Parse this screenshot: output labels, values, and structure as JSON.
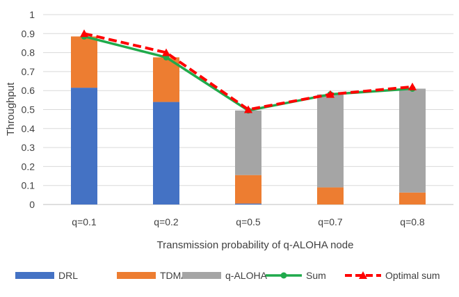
{
  "chart_data": {
    "type": "bar",
    "stacked": true,
    "title": "",
    "xlabel": "Transmission probability of q-ALOHA node",
    "ylabel": "Throughput",
    "ylim": [
      0,
      1
    ],
    "yticks": [
      "0",
      "0.1",
      "0.2",
      "0.3",
      "0.4",
      "0.5",
      "0.6",
      "0.7",
      "0.8",
      "0.9",
      "1"
    ],
    "grid": true,
    "legend_position": "bottom",
    "categories": [
      "q=0.1",
      "q=0.2",
      "q=0.5",
      "q=0.7",
      "q=0.8"
    ],
    "series": [
      {
        "name": "DRL",
        "kind": "bar",
        "color": "#4472C4",
        "values": [
          0.615,
          0.54,
          0.005,
          0.0,
          0.0
        ]
      },
      {
        "name": "TDMA",
        "kind": "bar",
        "color": "#ED7D31",
        "values": [
          0.27,
          0.235,
          0.15,
          0.09,
          0.063
        ]
      },
      {
        "name": "q-ALOHA",
        "kind": "bar",
        "color": "#A5A5A5",
        "values": [
          0.0,
          0.0,
          0.34,
          0.49,
          0.547
        ]
      },
      {
        "name": "Sum",
        "kind": "line",
        "color": "#1FAA4B",
        "marker": "circle",
        "values": [
          0.885,
          0.775,
          0.495,
          0.58,
          0.61
        ]
      },
      {
        "name": "Optimal sum",
        "kind": "line",
        "color": "#FF0000",
        "marker": "triangle",
        "dashed": true,
        "values": [
          0.9,
          0.8,
          0.5,
          0.58,
          0.62
        ]
      }
    ]
  }
}
